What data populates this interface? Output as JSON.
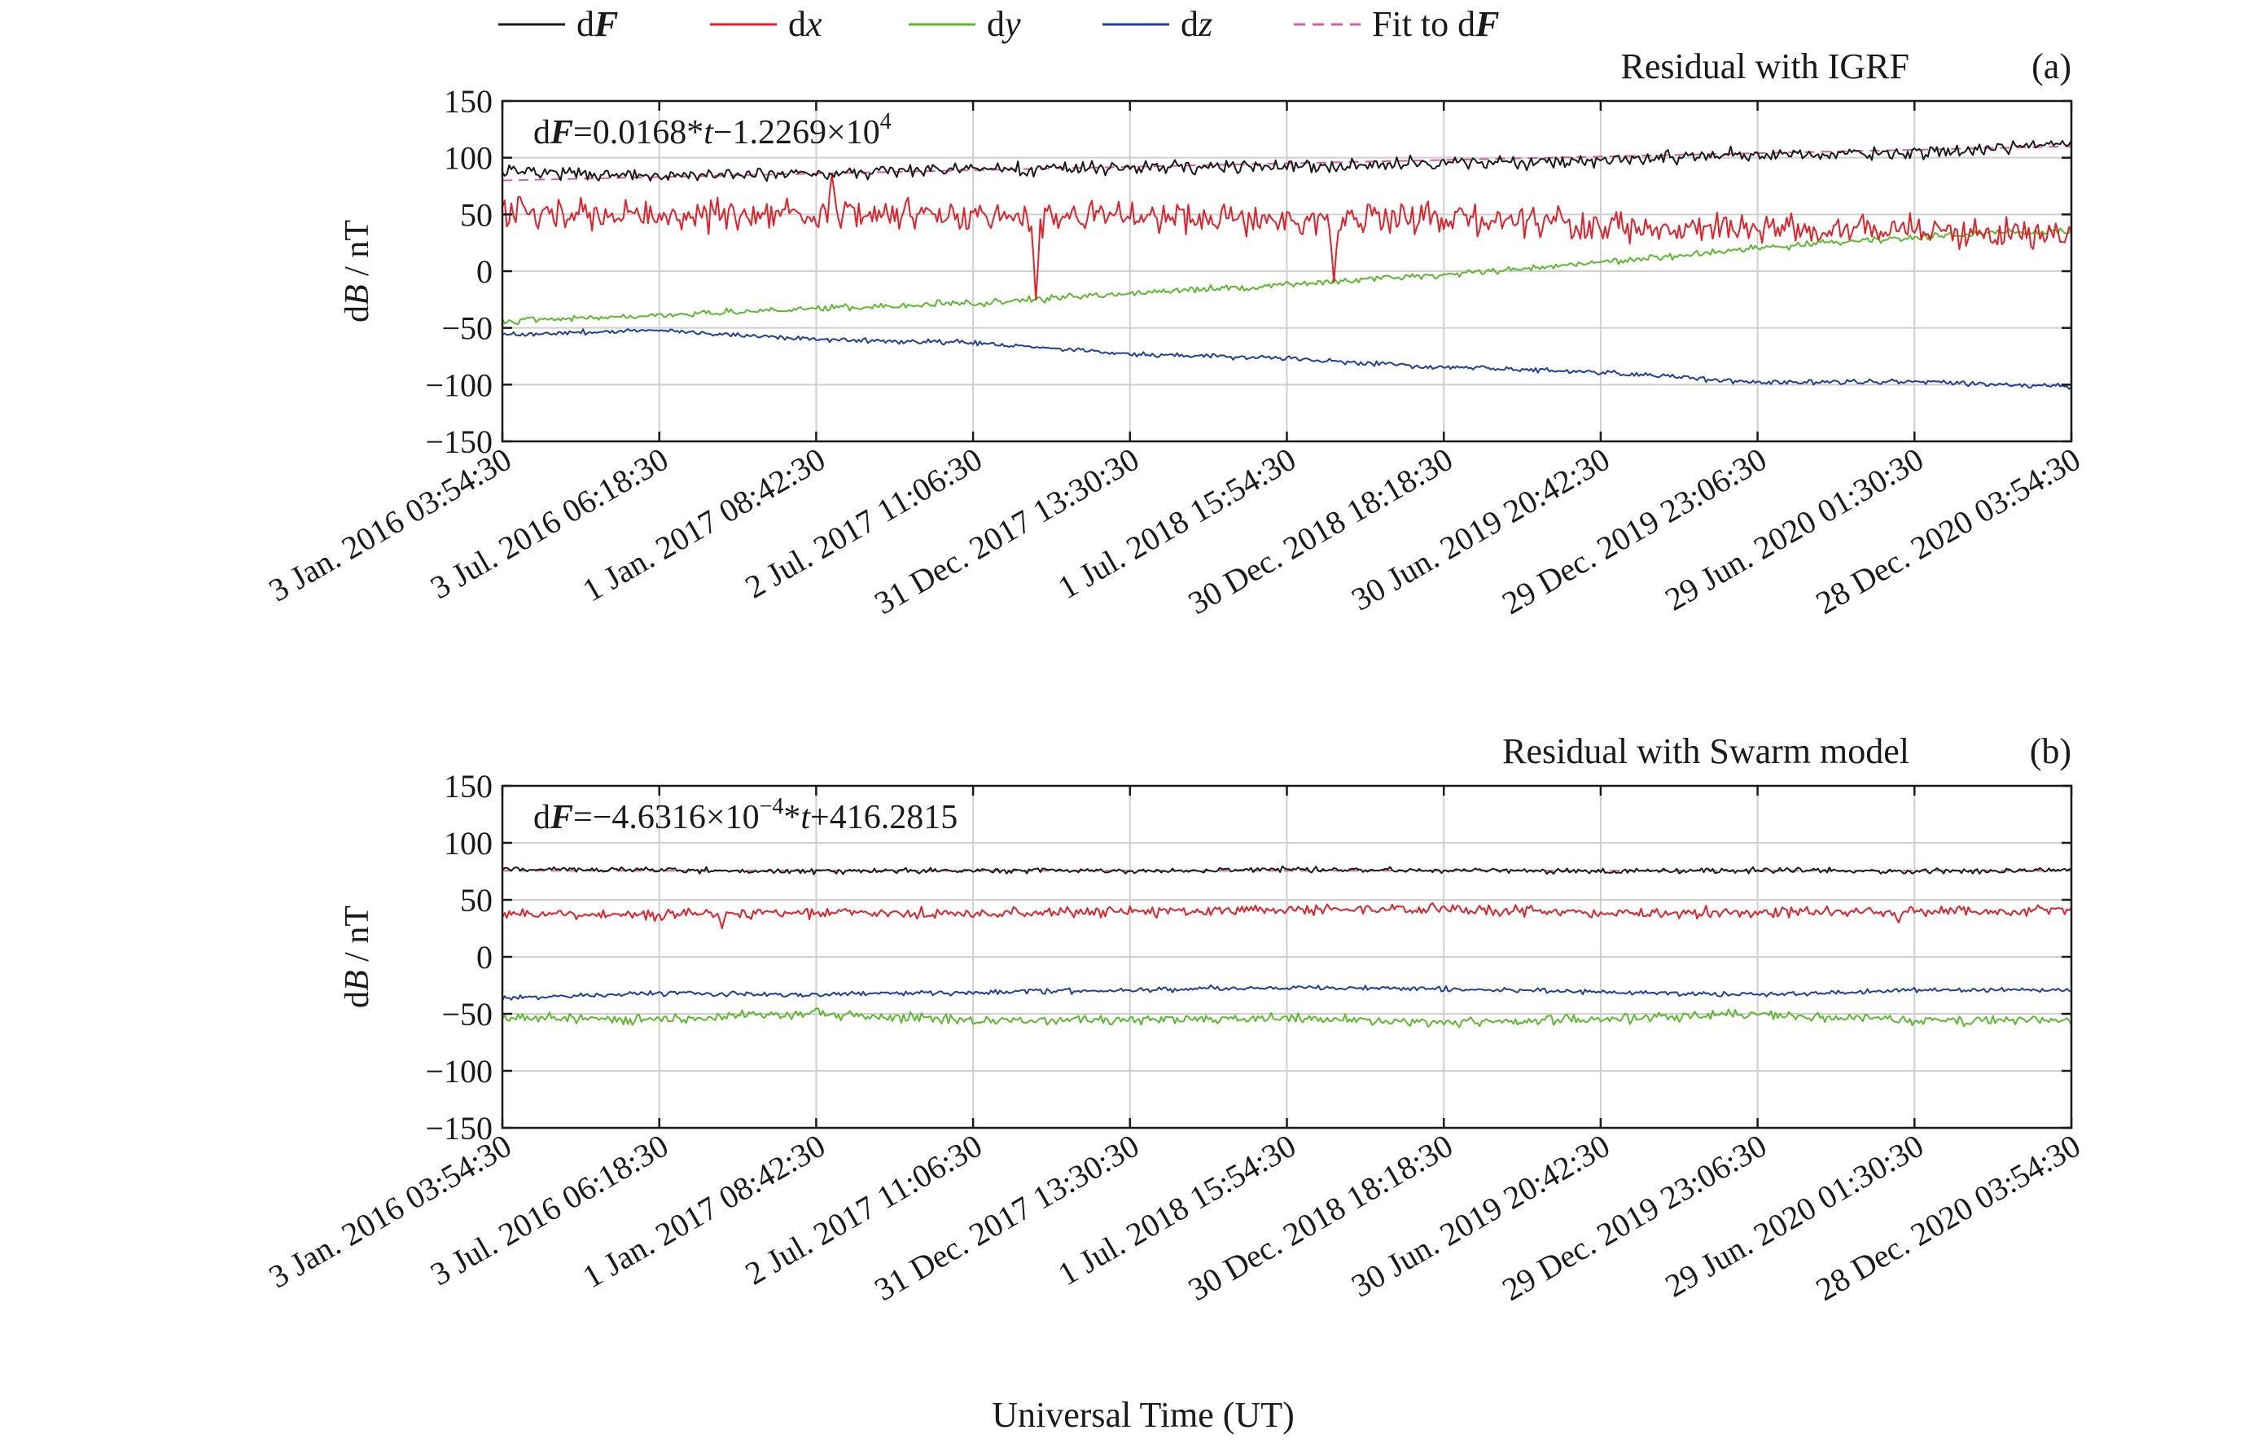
{
  "colors": {
    "dF": "#1a1a1a",
    "dx": "#e0222b",
    "dy": "#5cb82e",
    "dz": "#1f3f9a",
    "fit": "#d3609a"
  },
  "legend": [
    {
      "key": "dF",
      "prefix": "d",
      "var": "F",
      "style": "bold-italic",
      "dash": false
    },
    {
      "key": "dx",
      "prefix": "d",
      "var": "x",
      "style": "italic",
      "dash": false
    },
    {
      "key": "dy",
      "prefix": "d",
      "var": "y",
      "style": "italic",
      "dash": false
    },
    {
      "key": "dz",
      "prefix": "d",
      "var": "z",
      "style": "italic",
      "dash": false
    },
    {
      "key": "fit",
      "prefix": "Fit to d",
      "var": "F",
      "style": "bold-italic",
      "dash": true
    }
  ],
  "xlabel": "Universal Time (UT)",
  "chart_data": [
    {
      "type": "line",
      "panel": "(a)",
      "title": "Residual with IGRF",
      "ylabel_prefix": "d",
      "ylabel_var": "B",
      "ylabel_suffix": " / nT",
      "ylim": [
        -150,
        150
      ],
      "yticks": [
        150,
        100,
        50,
        0,
        -50,
        -100,
        -150
      ],
      "yticklabels": [
        "150",
        "100",
        "50",
        "0",
        "−50",
        "−100",
        "−150"
      ],
      "xticklabels": [
        "3 Jan. 2016 03:54:30",
        "3 Jul. 2016 06:18:30",
        "1 Jan. 2017 08:42:30",
        "2 Jul. 2017 11:06:30",
        "31 Dec. 2017 13:30:30",
        "1 Jul. 2018 15:54:30",
        "30 Dec. 2018 18:18:30",
        "30 Jun. 2019 20:42:30",
        "29 Dec. 2019 23:06:30",
        "29 Jun. 2020 01:30:30",
        "28 Dec. 2020 03:54:30"
      ],
      "grid": true,
      "fit_equation": {
        "lhs_prefix": "d",
        "lhs_var": "F",
        "rhs_a": "=0.0168*",
        "t": "t",
        "rhs_b": "−1.2269×10",
        "exp": "4",
        "rhs_c": ""
      },
      "x_index": [
        0,
        1,
        2,
        3,
        4,
        5,
        6,
        7,
        8,
        9,
        10
      ],
      "series": [
        {
          "key": "dF",
          "values": [
            88,
            84,
            86,
            89,
            91,
            92,
            95,
            97,
            103,
            104,
            113
          ]
        },
        {
          "key": "dx",
          "values": [
            50,
            48,
            52,
            47,
            50,
            45,
            47,
            40,
            38,
            35,
            33
          ]
        },
        {
          "key": "dy",
          "values": [
            -44,
            -39,
            -33,
            -28,
            -20,
            -12,
            -3,
            8,
            20,
            30,
            36
          ]
        },
        {
          "key": "dz",
          "values": [
            -56,
            -52,
            -60,
            -63,
            -73,
            -77,
            -85,
            -89,
            -98,
            -97,
            -102
          ]
        },
        {
          "key": "fit",
          "values": [
            80,
            83,
            86,
            89,
            92,
            95,
            98,
            101,
            104,
            107,
            110
          ]
        }
      ],
      "spikes": [
        {
          "key": "dx",
          "x": 3.4,
          "value": -25
        },
        {
          "key": "dx",
          "x": 5.3,
          "value": -10
        },
        {
          "key": "dx",
          "x": 2.1,
          "value": 85
        }
      ]
    },
    {
      "type": "line",
      "panel": "(b)",
      "title": "Residual with Swarm model",
      "ylabel_prefix": "d",
      "ylabel_var": "B",
      "ylabel_suffix": " / nT",
      "ylim": [
        -150,
        150
      ],
      "yticks": [
        150,
        100,
        50,
        0,
        -50,
        -100,
        -150
      ],
      "yticklabels": [
        "150",
        "100",
        "50",
        "0",
        "−50",
        "−100",
        "−150"
      ],
      "xticklabels": [
        "3 Jan. 2016 03:54:30",
        "3 Jul. 2016 06:18:30",
        "1 Jan. 2017 08:42:30",
        "2 Jul. 2017 11:06:30",
        "31 Dec. 2017 13:30:30",
        "1 Jul. 2018 15:54:30",
        "30 Dec. 2018 18:18:30",
        "30 Jun. 2019 20:42:30",
        "29 Dec. 2019 23:06:30",
        "29 Jun. 2020 01:30:30",
        "28 Dec. 2020 03:54:30"
      ],
      "grid": true,
      "fit_equation": {
        "lhs_prefix": "d",
        "lhs_var": "F",
        "rhs_a": "=−4.6316×10",
        "exp": "−4",
        "rhs_b": "*",
        "t": "t",
        "rhs_c": "+416.2815"
      },
      "x_index": [
        0,
        1,
        2,
        3,
        4,
        5,
        6,
        7,
        8,
        9,
        10
      ],
      "series": [
        {
          "key": "dF",
          "values": [
            77,
            76,
            75,
            76,
            75,
            77,
            76,
            75,
            76,
            75,
            76
          ]
        },
        {
          "key": "dx",
          "values": [
            38,
            37,
            39,
            38,
            40,
            41,
            42,
            38,
            39,
            40,
            41
          ]
        },
        {
          "key": "dy",
          "values": [
            -53,
            -55,
            -50,
            -56,
            -55,
            -54,
            -57,
            -55,
            -50,
            -56,
            -55
          ]
        },
        {
          "key": "dz",
          "values": [
            -36,
            -32,
            -33,
            -31,
            -29,
            -27,
            -28,
            -31,
            -33,
            -29,
            -29
          ]
        },
        {
          "key": "fit",
          "values": [
            75.5,
            75.5,
            75.5,
            75.5,
            75.5,
            75.5,
            75.5,
            75.5,
            75.5,
            75.5,
            75.5
          ]
        }
      ],
      "spikes": [
        {
          "key": "dx",
          "x": 1.4,
          "value": 25
        },
        {
          "key": "dy",
          "x": 2.0,
          "value": -45
        },
        {
          "key": "dx",
          "x": 8.9,
          "value": 30
        }
      ]
    }
  ]
}
